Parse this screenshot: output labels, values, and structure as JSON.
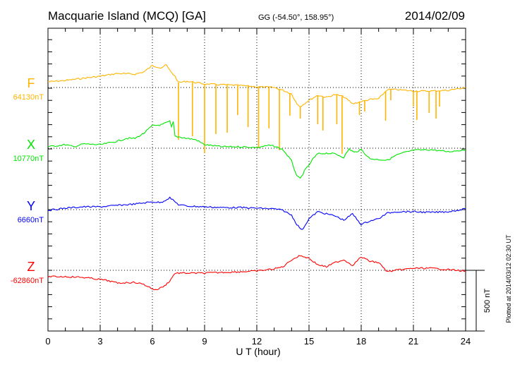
{
  "header": {
    "station": "Macquarie Island (MCQ)  [GA]",
    "coords": "GG (-54.50°, 158.95°)",
    "date": "2014/02/09"
  },
  "footer": {
    "plotted": "Plotted at 2014/03/12 02:30 UT",
    "scale_label": "500 nT"
  },
  "chart_data": {
    "type": "line",
    "title": "Macquarie Island (MCQ)  [GA]",
    "xlabel": "U T (hour)",
    "xlim": [
      0,
      24
    ],
    "xticks": [
      "0",
      "3",
      "6",
      "9",
      "12",
      "15",
      "18",
      "21",
      "24"
    ],
    "scale_bar_nT": 500,
    "grid": "dotted vertical every 3 h, dotted baseline per component",
    "series": [
      {
        "name": "F",
        "baseline_label": "64130nT",
        "color": "#ffb400",
        "points": [
          [
            0,
            47
          ],
          [
            1,
            58
          ],
          [
            2,
            76
          ],
          [
            3,
            93
          ],
          [
            4,
            116
          ],
          [
            5,
            110
          ],
          [
            5.5,
            128
          ],
          [
            6,
            180
          ],
          [
            6.5,
            163
          ],
          [
            6.8,
            186
          ],
          [
            7,
            140
          ],
          [
            7.3,
            93
          ],
          [
            7.5,
            41
          ],
          [
            8,
            52
          ],
          [
            9,
            29
          ],
          [
            10,
            23
          ],
          [
            11,
            17
          ],
          [
            12,
            6
          ],
          [
            13,
            0
          ],
          [
            13.5,
            -23
          ],
          [
            14,
            -52
          ],
          [
            14.3,
            -134
          ],
          [
            14.5,
            -157
          ],
          [
            15,
            -105
          ],
          [
            15.5,
            -64
          ],
          [
            16,
            -81
          ],
          [
            16.5,
            -58
          ],
          [
            17,
            -76
          ],
          [
            17.5,
            -134
          ],
          [
            18,
            -116
          ],
          [
            18.5,
            -99
          ],
          [
            19,
            -93
          ],
          [
            19.5,
            -17
          ],
          [
            20,
            -17
          ],
          [
            21,
            -29
          ],
          [
            22,
            -29
          ],
          [
            23,
            -23
          ],
          [
            24,
            0
          ]
        ],
        "spikes": [
          [
            7.5,
            -430
          ],
          [
            8.3,
            -401
          ],
          [
            9.0,
            -540
          ],
          [
            9.65,
            -383
          ],
          [
            10.3,
            -372
          ],
          [
            10.9,
            -227
          ],
          [
            11.5,
            -326
          ],
          [
            12.1,
            -500
          ],
          [
            12.7,
            -337
          ],
          [
            13.3,
            -517
          ],
          [
            13.9,
            -232
          ],
          [
            14.5,
            -256
          ],
          [
            15.5,
            -302
          ],
          [
            15.8,
            -354
          ],
          [
            16.6,
            -302
          ],
          [
            16.9,
            -546
          ],
          [
            17.9,
            -227
          ],
          [
            18.2,
            -198
          ],
          [
            19.4,
            -273
          ],
          [
            19.7,
            -105
          ],
          [
            21.0,
            -157
          ],
          [
            21.2,
            -267
          ],
          [
            21.9,
            -209
          ],
          [
            22.3,
            -256
          ],
          [
            22.5,
            -157
          ]
        ]
      },
      {
        "name": "X",
        "baseline_label": "10770nT",
        "color": "#00e600",
        "points": [
          [
            0,
            12
          ],
          [
            1,
            29
          ],
          [
            1.5,
            12
          ],
          [
            2,
            35
          ],
          [
            3,
            29
          ],
          [
            4,
            58
          ],
          [
            4.5,
            81
          ],
          [
            5,
            81
          ],
          [
            5.5,
            122
          ],
          [
            6,
            186
          ],
          [
            6.5,
            192
          ],
          [
            7,
            221
          ],
          [
            7.1,
            174
          ],
          [
            7.2,
            215
          ],
          [
            7.3,
            99
          ],
          [
            8,
            81
          ],
          [
            8.5,
            70
          ],
          [
            9,
            29
          ],
          [
            10,
            12
          ],
          [
            11,
            12
          ],
          [
            12,
            6
          ],
          [
            12.7,
            23
          ],
          [
            13,
            17
          ],
          [
            13.5,
            -12
          ],
          [
            14,
            -105
          ],
          [
            14.3,
            -232
          ],
          [
            14.5,
            -250
          ],
          [
            14.8,
            -174
          ],
          [
            15,
            -139
          ],
          [
            15.2,
            -93
          ],
          [
            15.5,
            -46
          ],
          [
            16,
            -41
          ],
          [
            16.5,
            -46
          ],
          [
            17,
            -76
          ],
          [
            17.3,
            -6
          ],
          [
            17.6,
            -35
          ],
          [
            18,
            -12
          ],
          [
            18.5,
            -87
          ],
          [
            19,
            -93
          ],
          [
            19.5,
            -99
          ],
          [
            20,
            -58
          ],
          [
            20.5,
            -35
          ],
          [
            21,
            -17
          ],
          [
            22,
            -12
          ],
          [
            23,
            -29
          ],
          [
            24,
            -12
          ]
        ]
      },
      {
        "name": "Y",
        "baseline_label": "6660nT",
        "color": "#0000ff",
        "points": [
          [
            0,
            -6
          ],
          [
            1,
            12
          ],
          [
            2,
            23
          ],
          [
            3,
            23
          ],
          [
            4,
            35
          ],
          [
            5,
            46
          ],
          [
            6,
            64
          ],
          [
            6.5,
            58
          ],
          [
            7,
            99
          ],
          [
            7.5,
            41
          ],
          [
            8,
            29
          ],
          [
            9,
            23
          ],
          [
            10,
            17
          ],
          [
            11,
            17
          ],
          [
            12,
            12
          ],
          [
            13,
            6
          ],
          [
            13.5,
            -6
          ],
          [
            14,
            -46
          ],
          [
            14.3,
            -122
          ],
          [
            14.6,
            -169
          ],
          [
            15,
            -75
          ],
          [
            15.5,
            -17
          ],
          [
            16,
            -35
          ],
          [
            16.5,
            -52
          ],
          [
            17,
            -87
          ],
          [
            17.5,
            -35
          ],
          [
            18,
            -122
          ],
          [
            18.5,
            -93
          ],
          [
            19,
            -75
          ],
          [
            19.5,
            -29
          ],
          [
            20,
            -17
          ],
          [
            21,
            -17
          ],
          [
            22,
            -23
          ],
          [
            23,
            -17
          ],
          [
            24,
            6
          ]
        ]
      },
      {
        "name": "Z",
        "baseline_label": "-62860nT",
        "color": "#ff0000",
        "points": [
          [
            0,
            -52
          ],
          [
            1,
            -52
          ],
          [
            2,
            -58
          ],
          [
            3,
            -75
          ],
          [
            3.5,
            -87
          ],
          [
            4,
            -105
          ],
          [
            5,
            -99
          ],
          [
            5.5,
            -116
          ],
          [
            6,
            -151
          ],
          [
            6.2,
            -163
          ],
          [
            6.7,
            -128
          ],
          [
            7,
            -87
          ],
          [
            7.3,
            -23
          ],
          [
            8,
            -23
          ],
          [
            9,
            -23
          ],
          [
            10,
            -17
          ],
          [
            11,
            -12
          ],
          [
            12,
            -6
          ],
          [
            13,
            12
          ],
          [
            13.5,
            29
          ],
          [
            14,
            87
          ],
          [
            14.5,
            122
          ],
          [
            15,
            99
          ],
          [
            15.5,
            46
          ],
          [
            16,
            29
          ],
          [
            16.5,
            64
          ],
          [
            17,
            87
          ],
          [
            17.5,
            41
          ],
          [
            18,
            110
          ],
          [
            18.5,
            75
          ],
          [
            19,
            64
          ],
          [
            19.5,
            -12
          ],
          [
            20,
            0
          ],
          [
            21,
            17
          ],
          [
            22,
            17
          ],
          [
            23,
            6
          ],
          [
            24,
            -6
          ]
        ]
      }
    ]
  }
}
